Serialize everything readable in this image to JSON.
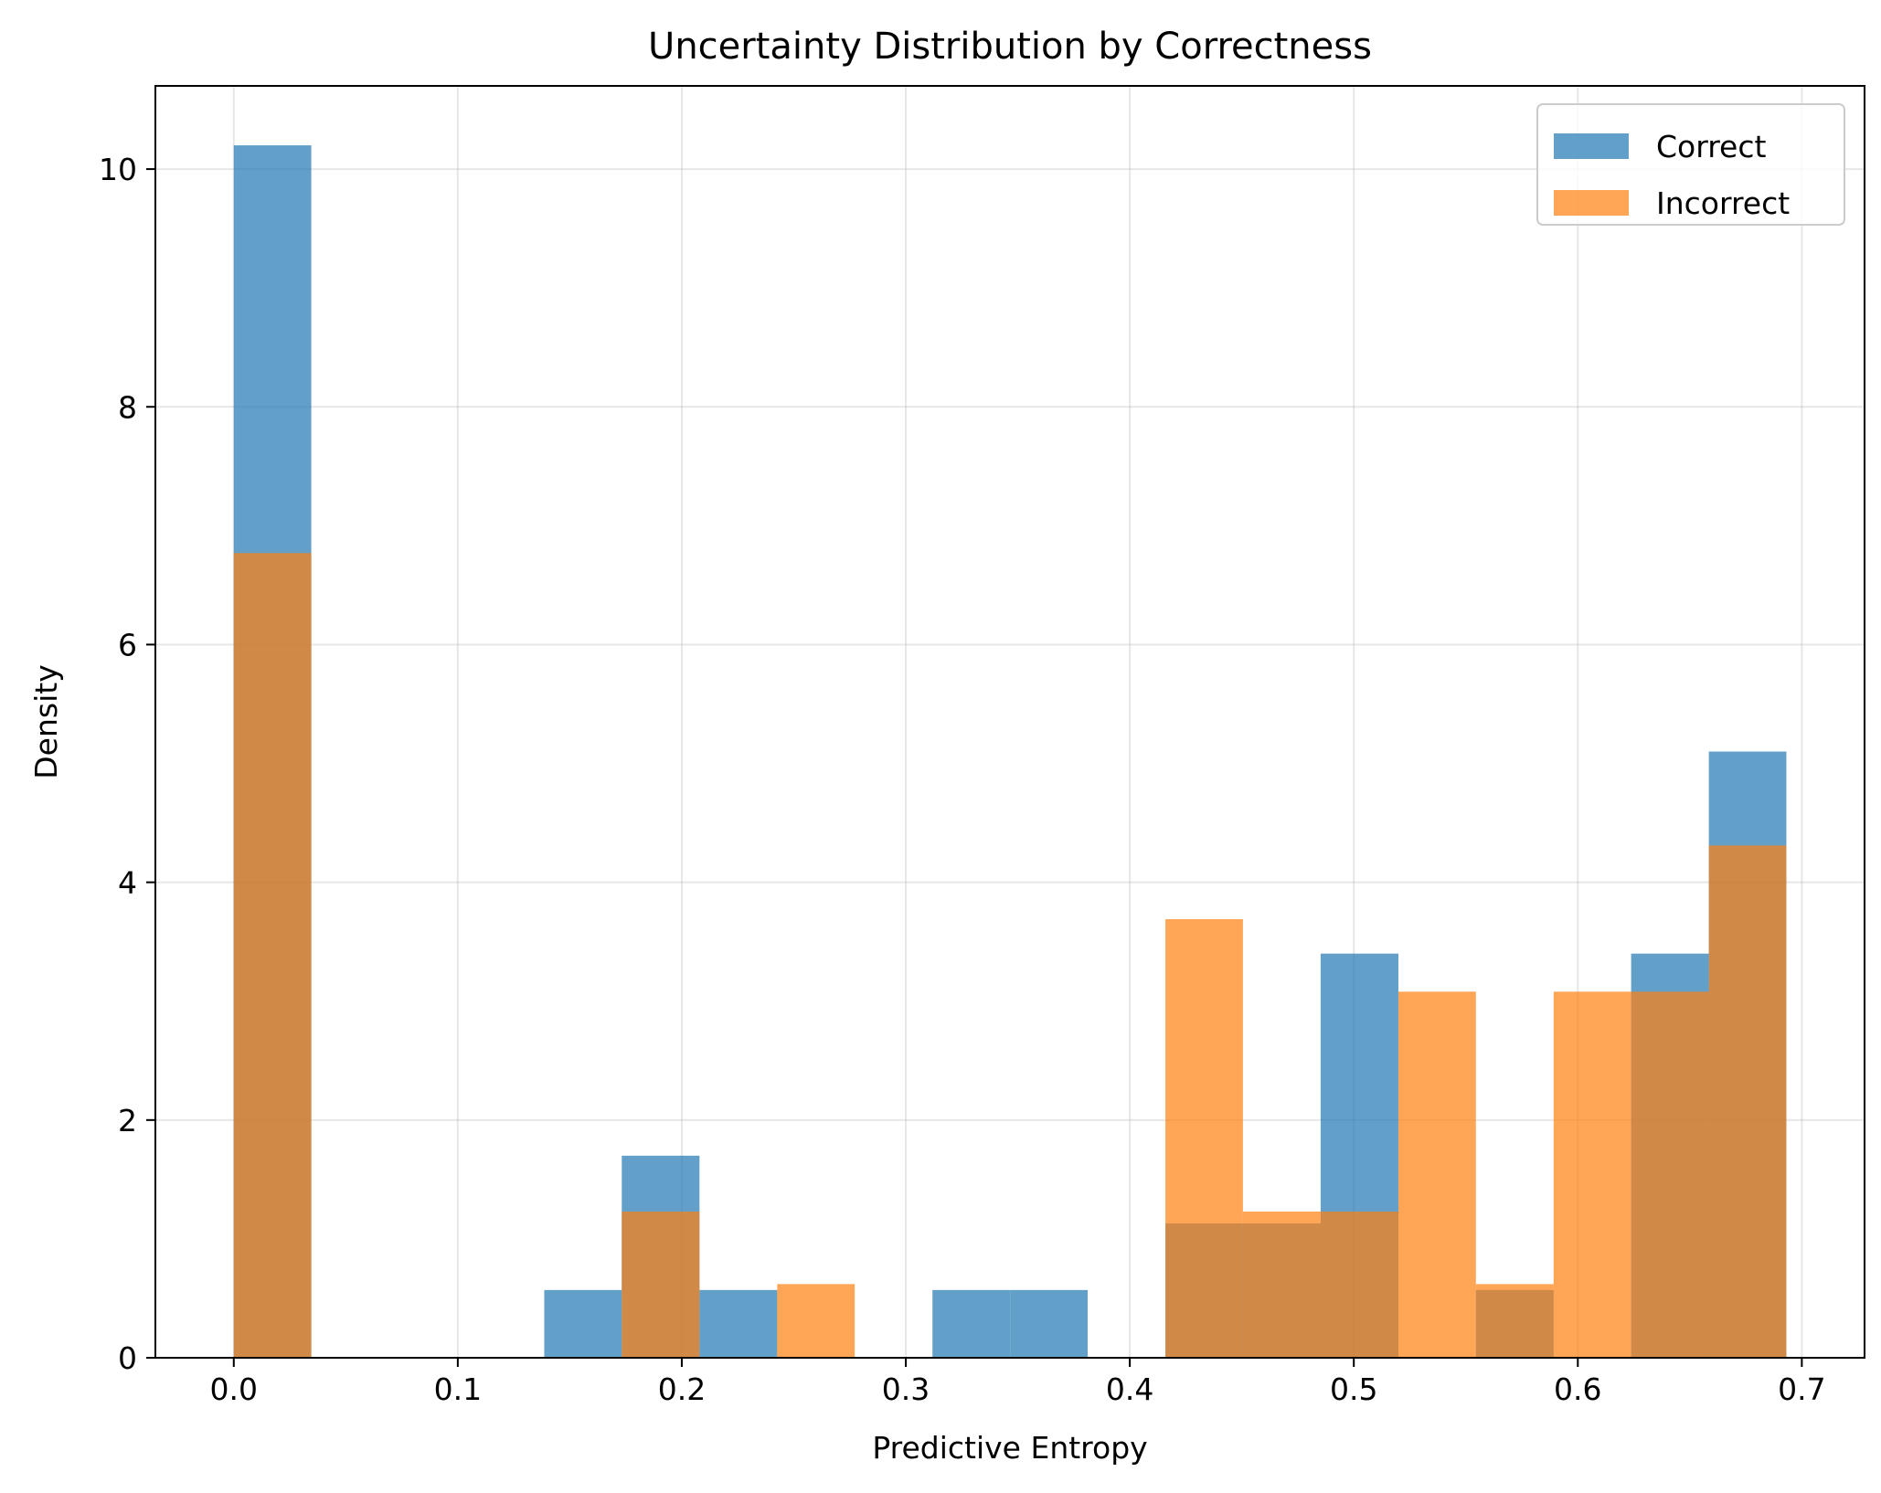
{
  "chart_data": {
    "type": "histogram",
    "title": "Uncertainty Distribution by Correctness",
    "xlabel": "Predictive Entropy",
    "ylabel": "Density",
    "xlim": [
      -0.035,
      0.728
    ],
    "ylim": [
      0,
      10.7
    ],
    "x_ticks": [
      0.0,
      0.1,
      0.2,
      0.3,
      0.4,
      0.5,
      0.6,
      0.7
    ],
    "x_tick_labels": [
      "0.0",
      "0.1",
      "0.2",
      "0.3",
      "0.4",
      "0.5",
      "0.6",
      "0.7"
    ],
    "y_ticks": [
      0,
      2,
      4,
      6,
      8,
      10
    ],
    "y_tick_labels": [
      "0",
      "2",
      "4",
      "6",
      "8",
      "10"
    ],
    "grid": true,
    "legend_position": "top-right",
    "series": [
      {
        "name": "Correct",
        "color": "#1f77b4",
        "opacity": 0.7,
        "bins": [
          {
            "x0": 0.0,
            "x1": 0.0346,
            "value": 10.2
          },
          {
            "x0": 0.1386,
            "x1": 0.1732,
            "value": 0.57
          },
          {
            "x0": 0.1732,
            "x1": 0.2079,
            "value": 1.7
          },
          {
            "x0": 0.2079,
            "x1": 0.2426,
            "value": 0.57
          },
          {
            "x0": 0.3119,
            "x1": 0.3466,
            "value": 0.57
          },
          {
            "x0": 0.3466,
            "x1": 0.3812,
            "value": 0.57
          },
          {
            "x0": 0.4159,
            "x1": 0.4505,
            "value": 1.13
          },
          {
            "x0": 0.4505,
            "x1": 0.4852,
            "value": 1.13
          },
          {
            "x0": 0.4852,
            "x1": 0.5199,
            "value": 3.4
          },
          {
            "x0": 0.5545,
            "x1": 0.5892,
            "value": 0.57
          },
          {
            "x0": 0.6238,
            "x1": 0.6585,
            "value": 3.4
          },
          {
            "x0": 0.6585,
            "x1": 0.6931,
            "value": 5.1
          }
        ]
      },
      {
        "name": "Incorrect",
        "color": "#ff7f0e",
        "opacity": 0.7,
        "bins": [
          {
            "x0": 0.0,
            "x1": 0.0346,
            "value": 6.77
          },
          {
            "x0": 0.1732,
            "x1": 0.2079,
            "value": 1.23
          },
          {
            "x0": 0.2426,
            "x1": 0.2772,
            "value": 0.62
          },
          {
            "x0": 0.4159,
            "x1": 0.4505,
            "value": 3.69
          },
          {
            "x0": 0.4505,
            "x1": 0.4852,
            "value": 1.23
          },
          {
            "x0": 0.4852,
            "x1": 0.5199,
            "value": 1.23
          },
          {
            "x0": 0.5199,
            "x1": 0.5545,
            "value": 3.08
          },
          {
            "x0": 0.5545,
            "x1": 0.5892,
            "value": 0.62
          },
          {
            "x0": 0.5892,
            "x1": 0.6238,
            "value": 3.08
          },
          {
            "x0": 0.6238,
            "x1": 0.6585,
            "value": 3.08
          },
          {
            "x0": 0.6585,
            "x1": 0.6931,
            "value": 4.31
          }
        ]
      }
    ]
  }
}
